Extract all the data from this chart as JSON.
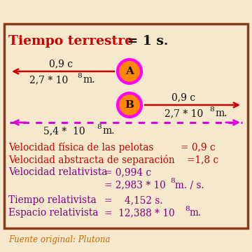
{
  "bg_color": "#f5e8cc",
  "border_color": "#8B3A1A",
  "title_red": "Tiempo terrestre",
  "title_black": " = 1 s.",
  "title_color": "#cc0000",
  "title_black_color": "#111111",
  "arrow_color": "#cc0000",
  "dotted_arrow_color": "#dd00dd",
  "ball_A_color": "#ff8800",
  "ball_B_color": "#ff8800",
  "ball_border_color": "#ff00ff",
  "ball_text_color": "#111111",
  "lines_red": [
    {
      "text": "Velocidad física de las pelotas",
      "value": "= 0,9 c"
    },
    {
      "text": "Velocidad abstracta de separación",
      "value": "=1,8 c"
    }
  ],
  "lines_purple": [
    {
      "text": "Velocidad relativista",
      "value": "= 0,994 c"
    },
    {
      "text": "",
      "value": "= 2,983 * 10⁸ m. / s."
    },
    {
      "text": "Tiempo relativista",
      "value": "=    4,152 s."
    },
    {
      "text": "Espacio relativista",
      "value": "=  12,388 * 10⁸ m."
    }
  ],
  "red_color": "#cc0000",
  "purple_color": "#800080",
  "footer": "Fuente original: Plutona",
  "footer_color": "#cc6600"
}
